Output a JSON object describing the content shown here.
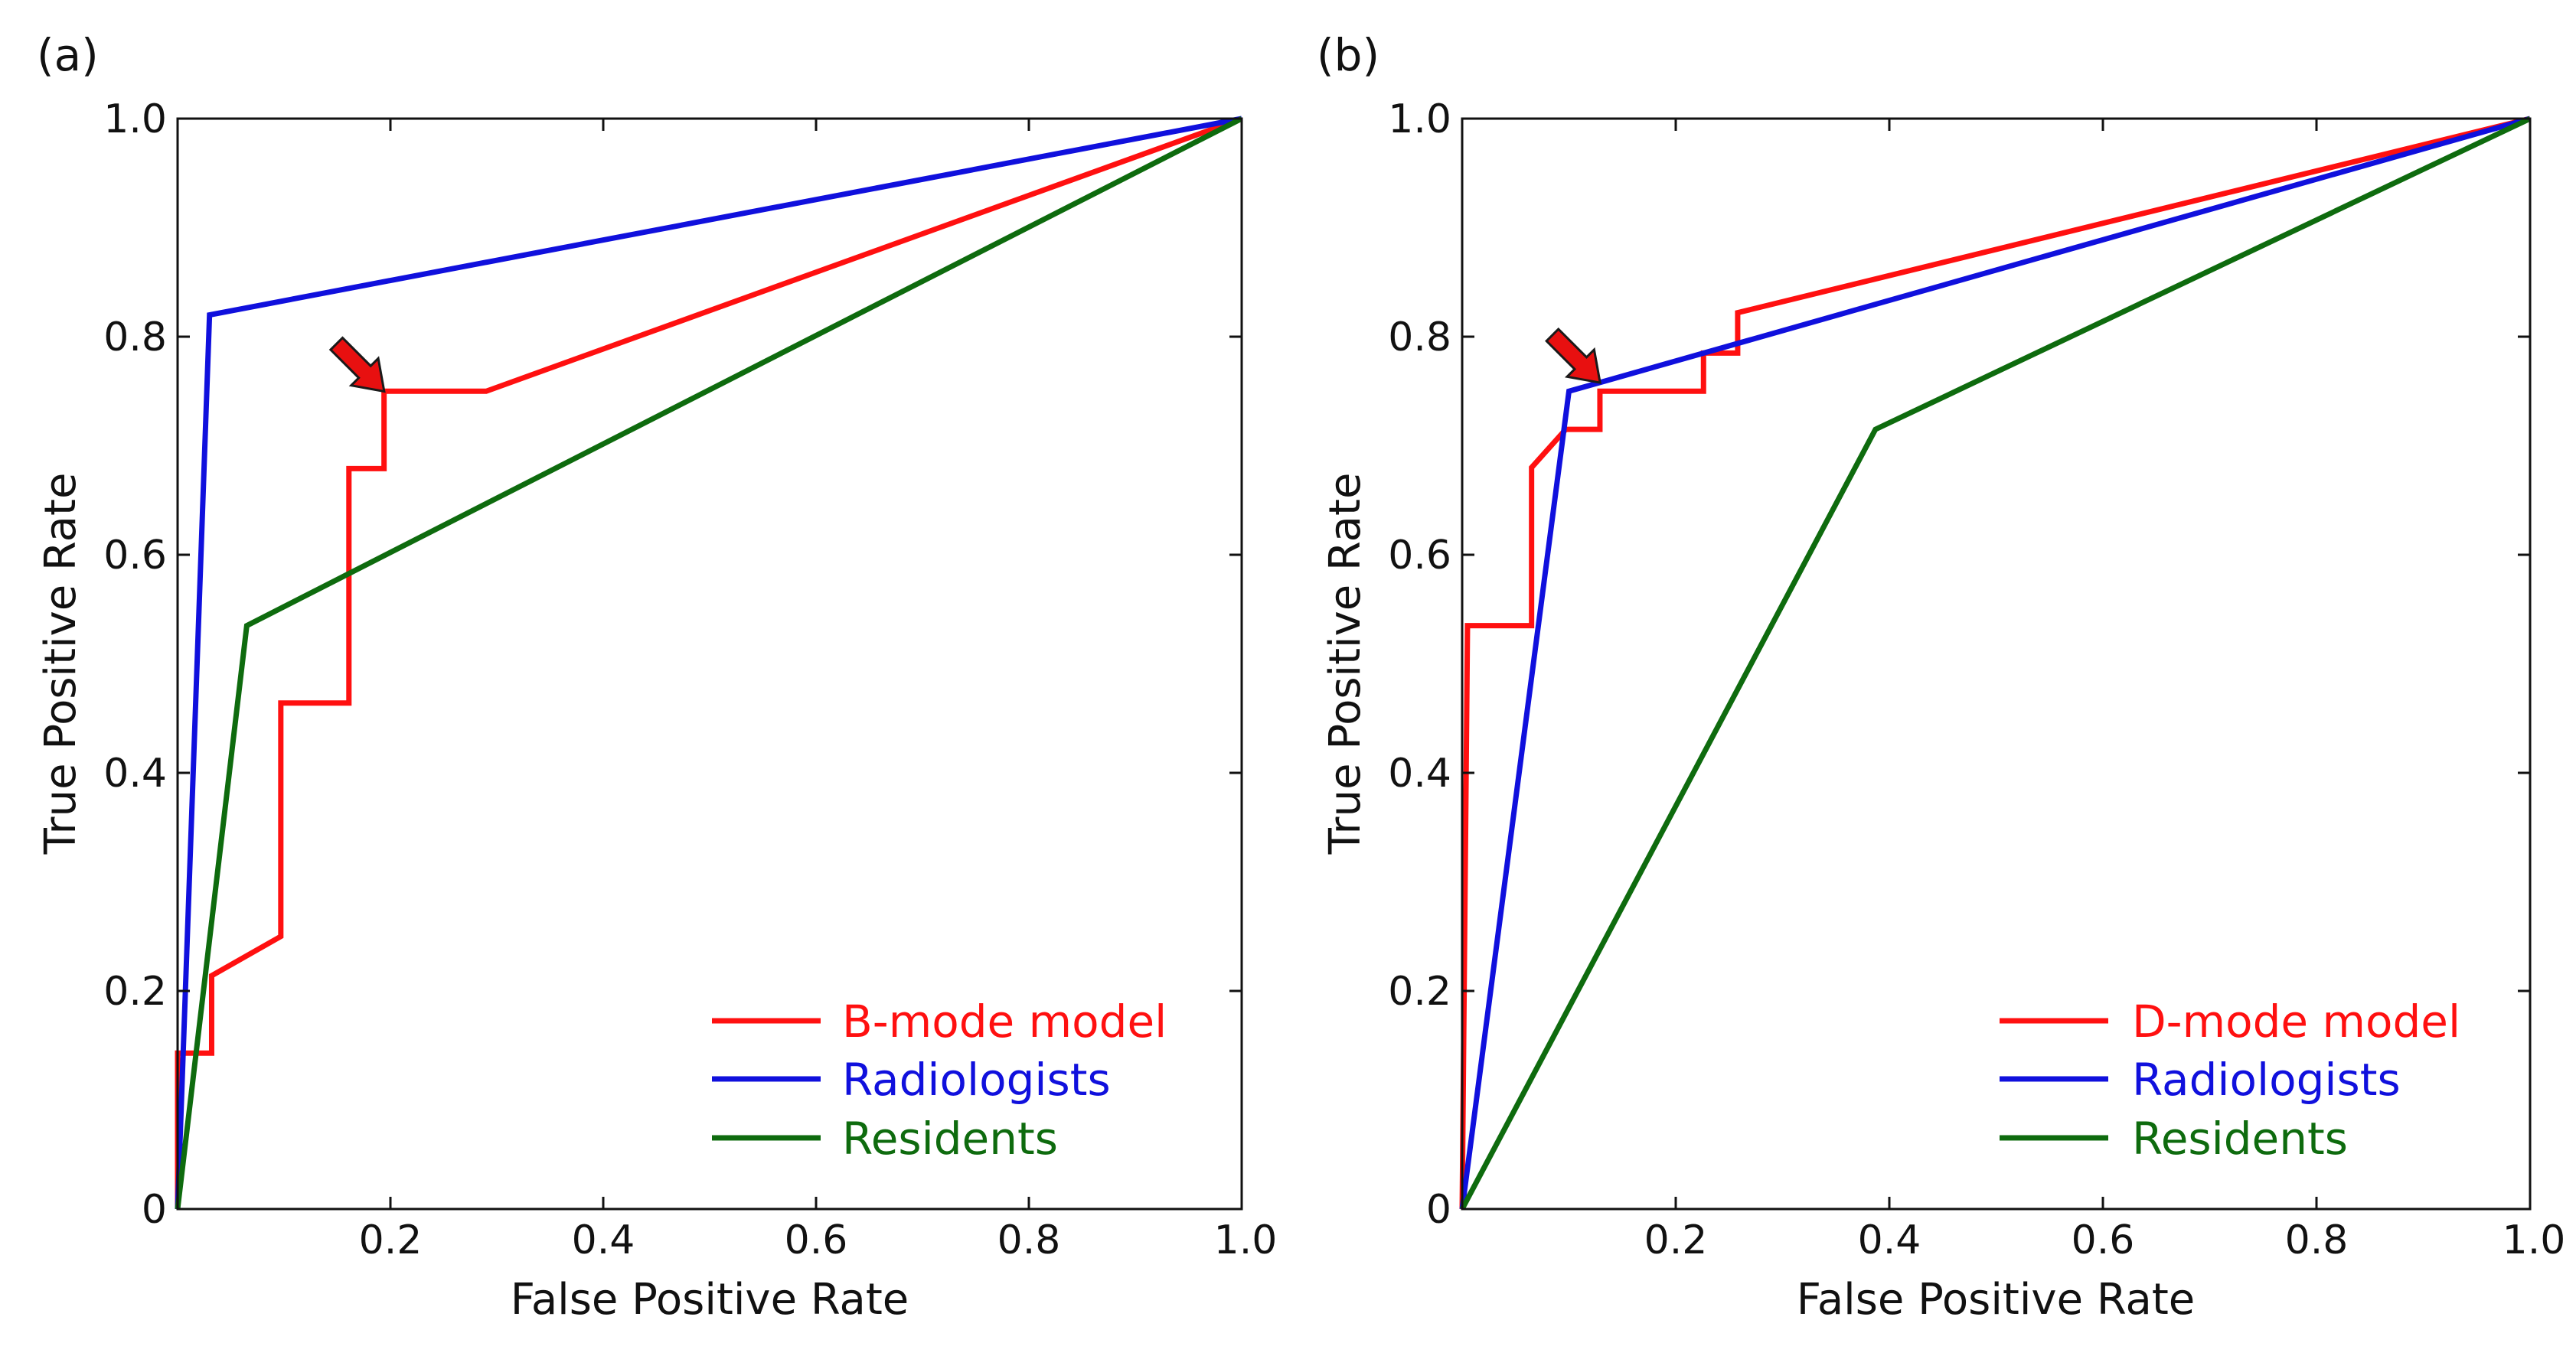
{
  "chart_data": [
    {
      "type": "line",
      "panel_label": "(a)",
      "xlabel": "False Positive Rate",
      "ylabel": "True Positive Rate",
      "xlim": [
        0,
        1
      ],
      "ylim": [
        0,
        1
      ],
      "x_ticks": [
        {
          "value": 0.2,
          "label": "0.2"
        },
        {
          "value": 0.4,
          "label": "0.4"
        },
        {
          "value": 0.6,
          "label": "0.6"
        },
        {
          "value": 0.8,
          "label": "0.8"
        },
        {
          "value": 1.0,
          "label": "1.0"
        }
      ],
      "y_ticks": [
        {
          "value": 0,
          "label": "0"
        },
        {
          "value": 0.2,
          "label": "0.2"
        },
        {
          "value": 0.4,
          "label": "0.4"
        },
        {
          "value": 0.6,
          "label": "0.6"
        },
        {
          "value": 0.8,
          "label": "0.8"
        },
        {
          "value": 1.0,
          "label": "1.0"
        }
      ],
      "legend_position": "bottom-right",
      "grid": false,
      "series": [
        {
          "name": "B-mode model",
          "color": "#ff1010",
          "points": [
            [
              0,
              0
            ],
            [
              0,
              0.143
            ],
            [
              0.032,
              0.143
            ],
            [
              0.032,
              0.214
            ],
            [
              0.097,
              0.25
            ],
            [
              0.097,
              0.464
            ],
            [
              0.161,
              0.464
            ],
            [
              0.161,
              0.679
            ],
            [
              0.194,
              0.679
            ],
            [
              0.194,
              0.75
            ],
            [
              0.29,
              0.75
            ],
            [
              1,
              1
            ]
          ]
        },
        {
          "name": "Radiologists",
          "color": "#1010dd",
          "points": [
            [
              0,
              0
            ],
            [
              0.03,
              0.82
            ],
            [
              1,
              1
            ]
          ]
        },
        {
          "name": "Residents",
          "color": "#0e6b0e",
          "points": [
            [
              0,
              0
            ],
            [
              0.065,
              0.535
            ],
            [
              1,
              1
            ]
          ]
        }
      ],
      "annotation": {
        "type": "arrow",
        "color": "#e81010",
        "target": [
          0.194,
          0.75
        ]
      }
    },
    {
      "type": "line",
      "panel_label": "(b)",
      "xlabel": "False Positive Rate",
      "ylabel": "True Positive Rate",
      "xlim": [
        0,
        1
      ],
      "ylim": [
        0,
        1
      ],
      "x_ticks": [
        {
          "value": 0.2,
          "label": "0.2"
        },
        {
          "value": 0.4,
          "label": "0.4"
        },
        {
          "value": 0.6,
          "label": "0.6"
        },
        {
          "value": 0.8,
          "label": "0.8"
        },
        {
          "value": 1.0,
          "label": "1.0"
        }
      ],
      "y_ticks": [
        {
          "value": 0,
          "label": "0"
        },
        {
          "value": 0.2,
          "label": "0.2"
        },
        {
          "value": 0.4,
          "label": "0.4"
        },
        {
          "value": 0.6,
          "label": "0.6"
        },
        {
          "value": 0.8,
          "label": "0.8"
        },
        {
          "value": 1.0,
          "label": "1.0"
        }
      ],
      "legend_position": "bottom-right",
      "grid": false,
      "series": [
        {
          "name": "D-mode model",
          "color": "#ff1010",
          "points": [
            [
              0,
              0
            ],
            [
              0.005,
              0.535
            ],
            [
              0.065,
              0.535
            ],
            [
              0.065,
              0.68
            ],
            [
              0.097,
              0.715
            ],
            [
              0.129,
              0.715
            ],
            [
              0.129,
              0.75
            ],
            [
              0.226,
              0.75
            ],
            [
              0.226,
              0.785
            ],
            [
              0.258,
              0.785
            ],
            [
              0.258,
              0.822
            ],
            [
              1,
              1
            ]
          ]
        },
        {
          "name": "Radiologists",
          "color": "#1010dd",
          "points": [
            [
              0,
              0
            ],
            [
              0.1,
              0.75
            ],
            [
              0.129,
              0.758
            ],
            [
              1,
              1
            ]
          ]
        },
        {
          "name": "Residents",
          "color": "#0e6b0e",
          "points": [
            [
              0,
              0
            ],
            [
              0.387,
              0.715
            ],
            [
              1,
              1
            ]
          ]
        }
      ],
      "annotation": {
        "type": "arrow",
        "color": "#e81010",
        "target": [
          0.129,
          0.758
        ]
      }
    }
  ]
}
